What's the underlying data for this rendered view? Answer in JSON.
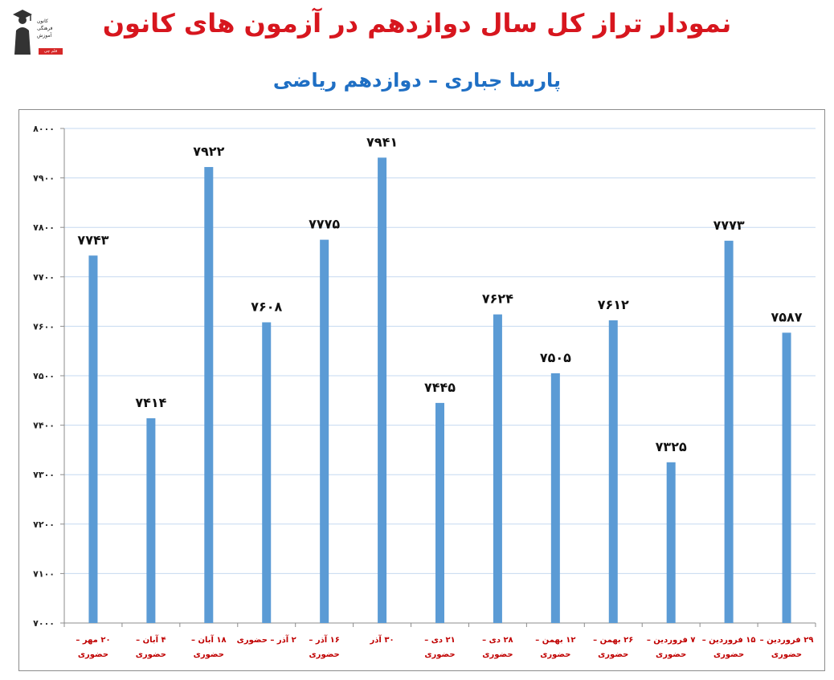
{
  "header": {
    "title": "نمودار تراز کل سال دوازدهم در آزمون های کانون",
    "subtitle": "پارسا جباری – دوازدهم ریاضی"
  },
  "logo": {
    "line1": "کانون",
    "line2": "فرهنگی",
    "line3": "آموزش",
    "badge": "قلم چی"
  },
  "colors": {
    "title": "#d7161e",
    "subtitle": "#1f6fc4",
    "bar": "#5b9bd5",
    "tick_label": "#c00000",
    "grid": "#c6d9f0"
  },
  "chart_data": {
    "type": "bar",
    "title": "نمودار تراز کل سال دوازدهم در آزمون های کانون",
    "subtitle": "پارسا جباری – دوازدهم ریاضی",
    "categories": [
      [
        "۲۰ مهر –",
        "حضوری"
      ],
      [
        "۴ آبان –",
        "حضوری"
      ],
      [
        "۱۸ آبان –",
        "حضوری"
      ],
      [
        "۲ آذر – حضوری"
      ],
      [
        "۱۶ آذر –",
        "حضوری"
      ],
      [
        "۳۰ آذر"
      ],
      [
        "۲۱ دی –",
        "حضوری"
      ],
      [
        "۲۸ دی –",
        "حضوری"
      ],
      [
        "۱۲ بهمن –",
        "حضوری"
      ],
      [
        "۲۶ بهمن –",
        "حضوری"
      ],
      [
        "۷ فروردین –",
        "حضوری"
      ],
      [
        "۱۵ فروردین –",
        "حضوری"
      ],
      [
        "۲۹ فروردین –",
        "حضوری"
      ]
    ],
    "values": [
      7743,
      7414,
      7922,
      7608,
      7775,
      7941,
      7445,
      7624,
      7505,
      7612,
      7325,
      7773,
      7587
    ],
    "data_labels": [
      "۷۷۴۳",
      "۷۴۱۴",
      "۷۹۲۲",
      "۷۶۰۸",
      "۷۷۷۵",
      "۷۹۴۱",
      "۷۴۴۵",
      "۷۶۲۴",
      "۷۵۰۵",
      "۷۶۱۲",
      "۷۳۲۵",
      "۷۷۷۳",
      "۷۵۸۷"
    ],
    "ylim": [
      7000,
      8000
    ],
    "yticks": [
      7000,
      7100,
      7200,
      7300,
      7400,
      7500,
      7600,
      7700,
      7800,
      7900,
      8000
    ],
    "ytick_labels": [
      "۷۰۰۰",
      "۷۱۰۰",
      "۷۲۰۰",
      "۷۳۰۰",
      "۷۴۰۰",
      "۷۵۰۰",
      "۷۶۰۰",
      "۷۷۰۰",
      "۷۸۰۰",
      "۷۹۰۰",
      "۸۰۰۰"
    ],
    "grid": true,
    "legend": "none"
  }
}
